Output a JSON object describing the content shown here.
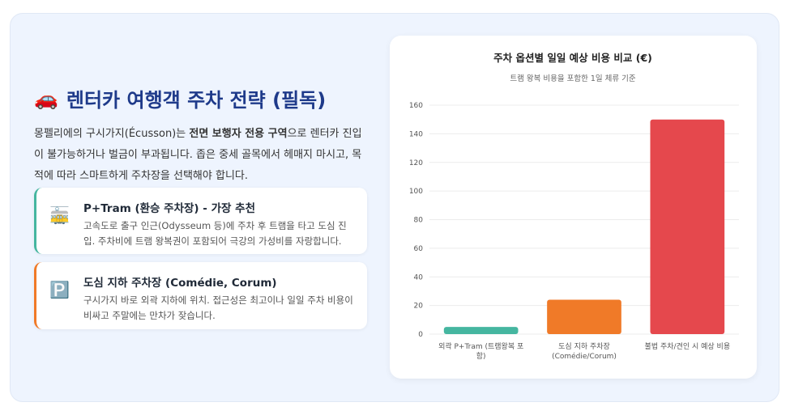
{
  "header": {
    "icon": "🚗",
    "title": "렌터카 여행객 주차 전략 (필독)"
  },
  "intro": [
    "몽펠리에의 구시가지(Écusson)는 ",
    "전면 보행자 전용 구역",
    "으로 렌터카 진입이 불가능하거나 벌금이 부과됩니다. 좁은 중세 골목에서 헤매지 마시고, 목적에 따라 스마트하게 주차장을 선택해야 합니다."
  ],
  "cards": [
    {
      "icon": "🚋",
      "title": "P+Tram (환승 주차장) - 가장 추천",
      "text": "고속도로 출구 인근(Odysseum 등)에 주차 후 트램을 타고 도심 진입. 주차비에 트램 왕복권이 포함되어 극강의 가성비를 자랑합니다."
    },
    {
      "icon": "🅿️",
      "title": "도심 지하 주차장 (Comédie, Corum)",
      "text": "구시가지 바로 외곽 지하에 위치. 접근성은 최고이나 일일 주차 비용이 비싸고 주말에는 만차가 잦습니다."
    }
  ],
  "chart_data": {
    "type": "bar",
    "title": "주차 옵션별 일일 예상 비용 비교 (€)",
    "subtitle": "트램 왕복 비용을 포함한 1일 체류 기준",
    "categories": [
      "외곽 P+Tram (트램왕복 포함)",
      "도심 지하 주차장 (Comédie/Corum)",
      "불법 주차/견인 시 예상 비용"
    ],
    "values": [
      5,
      24,
      150
    ],
    "colors": [
      "#45b6a0",
      "#f07a28",
      "#e5484d"
    ],
    "ylim": [
      0,
      160
    ],
    "yticks": [
      0,
      20,
      40,
      60,
      80,
      100,
      120,
      140,
      160
    ],
    "grid": true
  }
}
